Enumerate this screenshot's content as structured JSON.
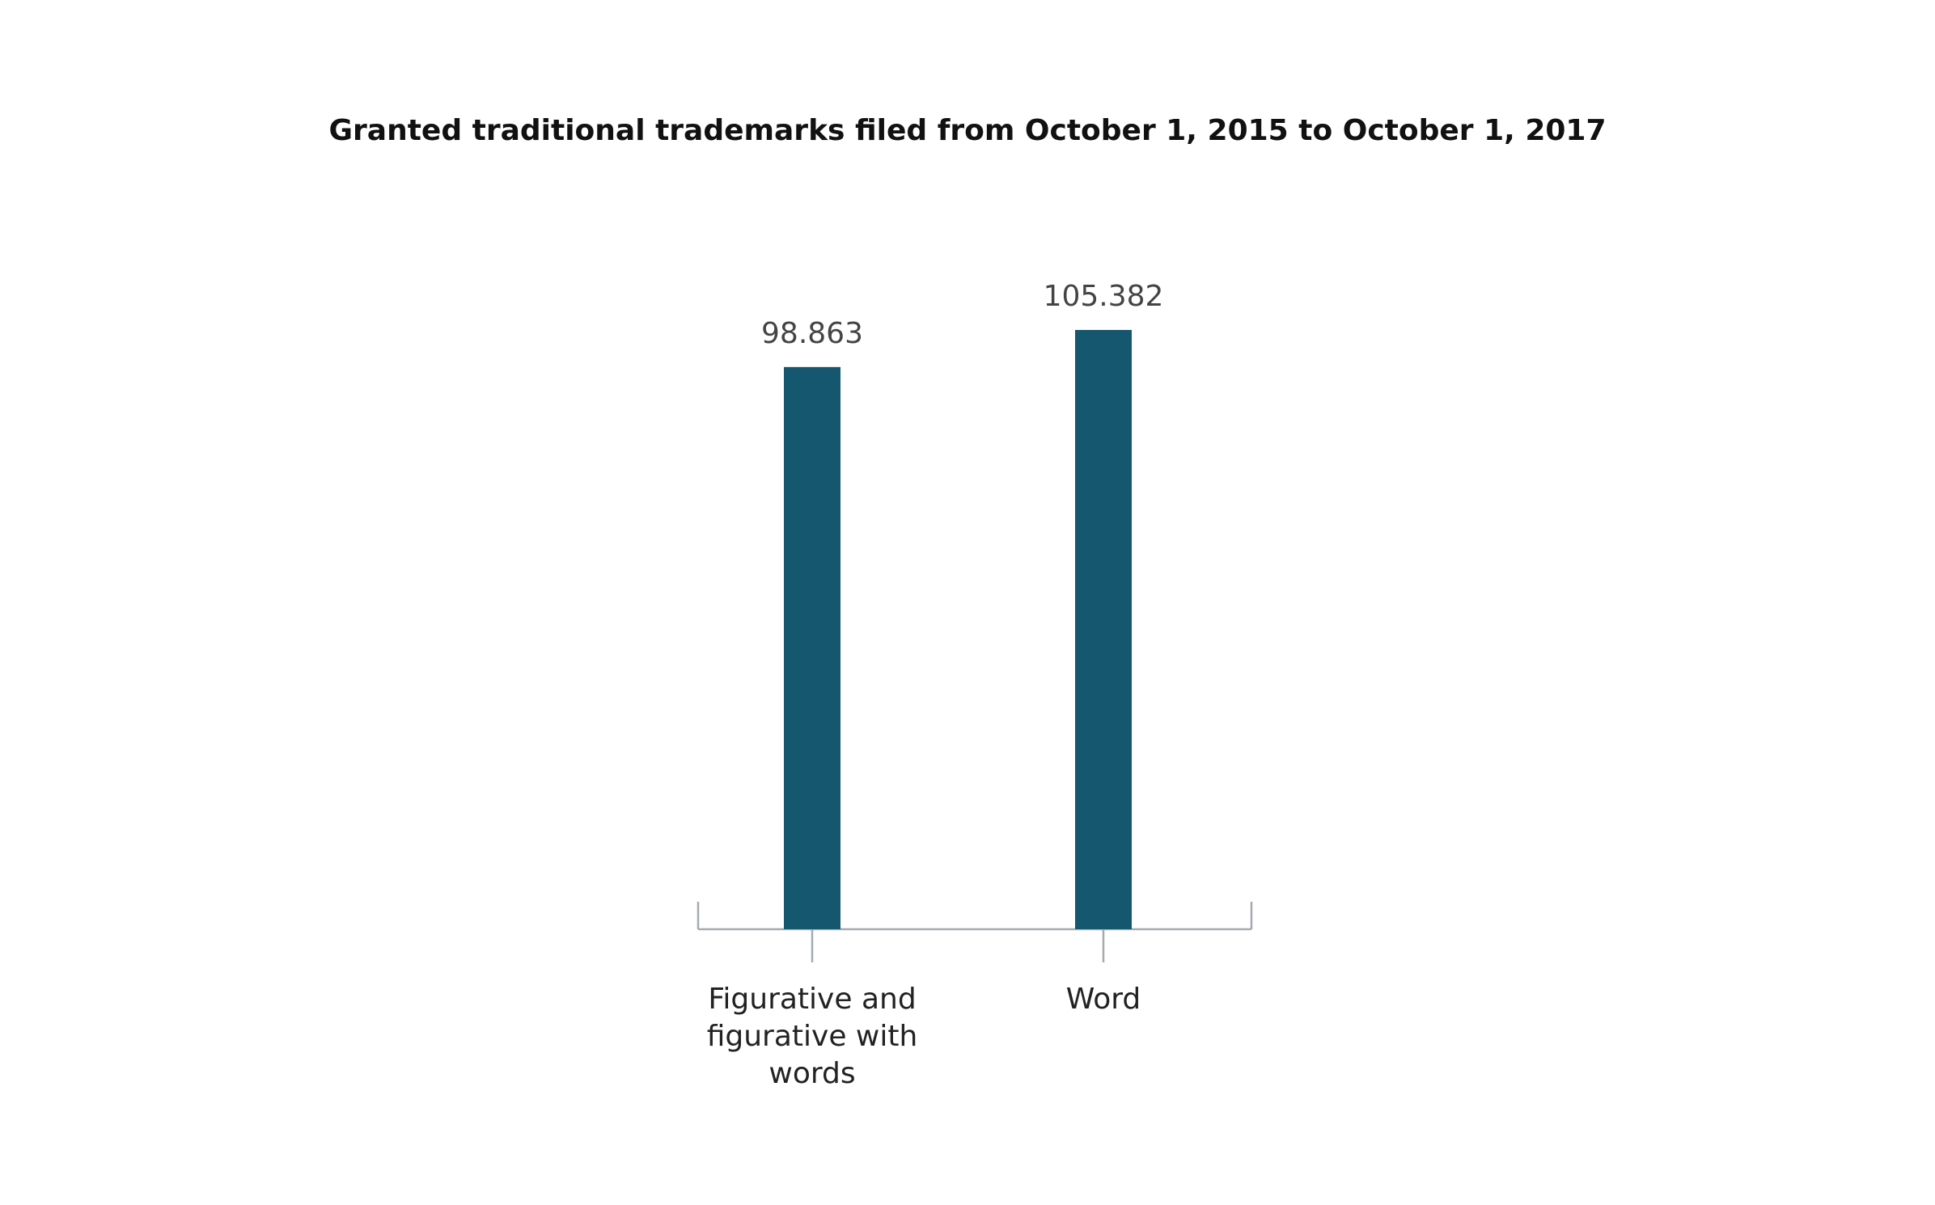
{
  "chart_data": {
    "type": "bar",
    "title": "Granted traditional trademarks filed from October 1, 2015 to October 1, 2017",
    "categories": [
      "Figurative and figurative with words",
      "Word"
    ],
    "values": [
      98863,
      105382
    ],
    "value_labels": [
      "98.863",
      "105.382"
    ],
    "color": "#165770"
  }
}
